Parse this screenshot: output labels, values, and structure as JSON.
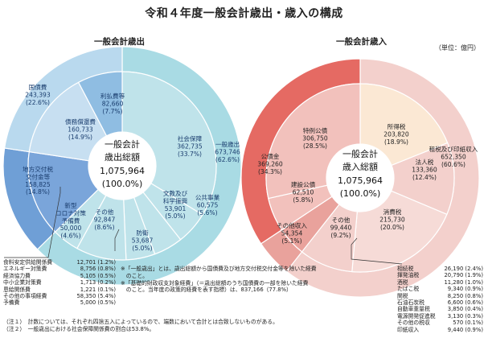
{
  "title": "令和４年度一般会計歳出・歳入の構成",
  "unit": "（単位：億円）",
  "chart_data": [
    {
      "type": "pie",
      "title": "一般会計歳出",
      "center": {
        "line1": "一般会計",
        "line2": "歳出総額",
        "line3": "1,075,964",
        "line4": "(100.0%)"
      },
      "outer": [
        {
          "name": "一般歳出",
          "value": 673746,
          "label": "673,746",
          "pct": "(62.6%)"
        },
        {
          "name": "地方交付税交付金等",
          "value": 158825,
          "label": "158,825",
          "pct": "(14.8%)"
        },
        {
          "name": "国債費",
          "value": 243393,
          "label": "243,393",
          "pct": "(22.6%)"
        }
      ],
      "inner": [
        {
          "name": "社会保障",
          "value": 362735,
          "label": "362,735",
          "pct": "(33.7%)"
        },
        {
          "name": "公共事業",
          "value": 60575,
          "label": "60,575",
          "pct": "(5.6%)"
        },
        {
          "name": "文教及び科学振興",
          "value": 53901,
          "label": "53,901",
          "pct": "(5.0%)"
        },
        {
          "name": "防衛",
          "value": 53687,
          "label": "53,687",
          "pct": "(5.0%)"
        },
        {
          "name": "その他",
          "value": 92847,
          "label": "92,847",
          "pct": "(8.6%)"
        },
        {
          "name": "新型コロナ対策予備費",
          "value": 50000,
          "label": "50,000",
          "pct": "(4.6%)"
        },
        {
          "name": "地方交付税交付金等",
          "value": 158825,
          "label": "158,825",
          "pct": "(14.8%)"
        },
        {
          "name": "債務償還費",
          "value": 160733,
          "label": "160,733",
          "pct": "(14.9%)"
        },
        {
          "name": "利払費等",
          "value": 82660,
          "label": "82,660",
          "pct": "(7.7%)"
        }
      ],
      "breakdown": [
        {
          "name": "食料安定供給関係費",
          "value": "12,701",
          "pct": "(1.2%)"
        },
        {
          "name": "エネルギー対策費",
          "value": "8,756",
          "pct": "(0.8%)"
        },
        {
          "name": "経済協力費",
          "value": "5,105",
          "pct": "(0.5%)"
        },
        {
          "name": "中小企業対策費",
          "value": "1,713",
          "pct": "(0.2%)"
        },
        {
          "name": "恩給関係費",
          "value": "1,221",
          "pct": "(0.1%)"
        },
        {
          "name": "その他の事項経費",
          "value": "58,350",
          "pct": "(5.4%)"
        },
        {
          "name": "予備費",
          "value": "5,000",
          "pct": "(0.5%)"
        }
      ]
    },
    {
      "type": "pie",
      "title": "一般会計歳入",
      "center": {
        "line1": "一般会計",
        "line2": "歳入総額",
        "line3": "1,075,964",
        "line4": "(100.0%)"
      },
      "outer": [
        {
          "name": "租税及び印紙収入",
          "value": 652350,
          "label": "652,350",
          "pct": "(60.6%)"
        },
        {
          "name": "その他収入",
          "value": 54354,
          "label": "54,354",
          "pct": "(5.1%)"
        },
        {
          "name": "公債金",
          "value": 369260,
          "label": "369,260",
          "pct": "(34.3%)"
        }
      ],
      "inner": [
        {
          "name": "所得税",
          "value": 203820,
          "label": "203,820",
          "pct": "(18.9%)"
        },
        {
          "name": "法人税",
          "value": 133360,
          "label": "133,360",
          "pct": "(12.4%)"
        },
        {
          "name": "消費税",
          "value": 215730,
          "label": "215,730",
          "pct": "(20.0%)"
        },
        {
          "name": "その他",
          "value": 99440,
          "label": "99,440",
          "pct": "(9.2%)"
        },
        {
          "name": "その他収入",
          "value": 54354,
          "label": "54,354",
          "pct": "(5.1%)"
        },
        {
          "name": "建設公債",
          "value": 62510,
          "label": "62,510",
          "pct": "(5.8%)"
        },
        {
          "name": "特例公債",
          "value": 306750,
          "label": "306,750",
          "pct": "(28.5%)"
        }
      ],
      "breakdown": [
        {
          "name": "相続税",
          "value": "26,190",
          "pct": "(2.4%)"
        },
        {
          "name": "揮発油税",
          "value": "20,790",
          "pct": "(1.9%)"
        },
        {
          "name": "酒税",
          "value": "11,280",
          "pct": "(1.0%)"
        },
        {
          "name": "たばこ税",
          "value": "9,340",
          "pct": "(0.9%)"
        },
        {
          "name": "関税",
          "value": "8,250",
          "pct": "(0.8%)"
        },
        {
          "name": "石油石炭税",
          "value": "6,600",
          "pct": "(0.6%)"
        },
        {
          "name": "自動車重量税",
          "value": "3,850",
          "pct": "(0.4%)"
        },
        {
          "name": "電源開発促進税",
          "value": "3,130",
          "pct": "(0.3%)"
        },
        {
          "name": "その他の税収",
          "value": "570",
          "pct": "(0.1%)"
        },
        {
          "name": "印紙収入",
          "value": "9,440",
          "pct": "(0.9%)"
        }
      ]
    }
  ],
  "notes": {
    "n1": "※「一般歳出」とは、歳出総額から国債費及び地方交付税交付金等を除いた経費",
    "n1b": "　のこと。",
    "n2": "※「基礎的財政収支対象経費」（＝歳出総額のうち国債費の一部を除いた経費",
    "n2b": "　のこと。当年度の政策的経費を表す指標）は、837,166（77.8%）",
    "f1": "（注１）　計数については、それぞれ四捨五入によっているので、端数において合計とは合致しないものがある。",
    "f2": "（注２）　一般歳出における社会保障関係費の割合は53.8%。"
  }
}
